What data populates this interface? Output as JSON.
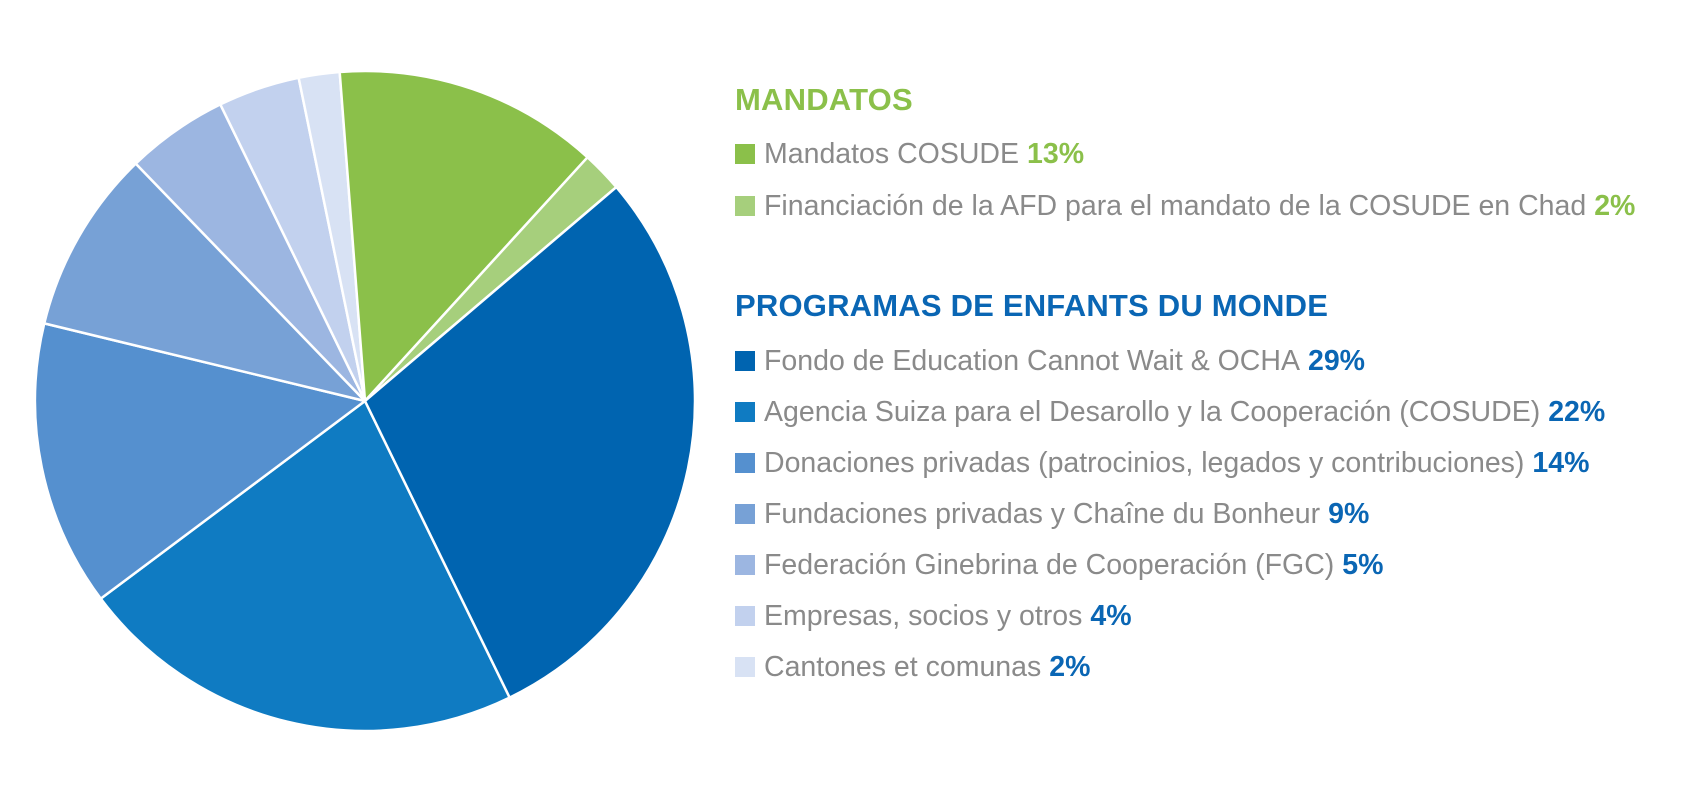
{
  "chart_data": {
    "type": "pie",
    "groups": [
      {
        "title": "MANDATOS",
        "title_color": "#8bc04a",
        "pct_color": "#8bc04a",
        "items": [
          {
            "label": "Mandatos COSUDE",
            "value": 13,
            "value_text": "13%",
            "color": "#8bc04a"
          },
          {
            "label": "Financiación de la AFD para el mandato de la COSUDE en Chad",
            "value": 2,
            "value_text": "2%",
            "color": "#a6cf7c"
          }
        ]
      },
      {
        "title": "PROGRAMAS DE ENFANTS DU MONDE",
        "title_color": "#0a66b4",
        "pct_color": "#0a66b4",
        "items": [
          {
            "label": "Fondo de Education Cannot Wait & OCHA",
            "value": 29,
            "value_text": "29%",
            "color": "#0064b0"
          },
          {
            "label": "Agencia Suiza para el Desarollo y la Cooperación (COSUDE)",
            "value": 22,
            "value_text": "22%",
            "color": "#0f7bc2"
          },
          {
            "label": "Donaciones privadas (patrocinios, legados y contribuciones)",
            "value": 14,
            "value_text": "14%",
            "color": "#5590cf"
          },
          {
            "label": "Fundaciones privadas y Chaîne du Bonheur",
            "value": 9,
            "value_text": "9%",
            "color": "#77a1d6"
          },
          {
            "label": "Federación Ginebrina de Cooperación (FGC)",
            "value": 5,
            "value_text": "5%",
            "color": "#9cb6e1"
          },
          {
            "label": "Empresas, socios y otros",
            "value": 4,
            "value_text": "4%",
            "color": "#c2d1ee"
          },
          {
            "label": "Cantones et comunas",
            "value": 2,
            "value_text": "2%",
            "color": "#d8e2f4"
          }
        ]
      }
    ],
    "slice_order": [
      "Agencia Suiza para el Desarollo y la Cooperación (COSUDE)",
      "Donaciones privadas (patrocinios, legados y contribuciones)",
      "Fundaciones privadas y Chaîne du Bonheur",
      "Federación Ginebrina de Cooperación (FGC)",
      "Empresas, socios y otros",
      "Cantones et comunas",
      "Mandatos COSUDE",
      "Financiación de la AFD para el mandato de la COSUDE en Chad",
      "Fondo de Education Cannot Wait & OCHA"
    ],
    "legend_position": "right"
  }
}
